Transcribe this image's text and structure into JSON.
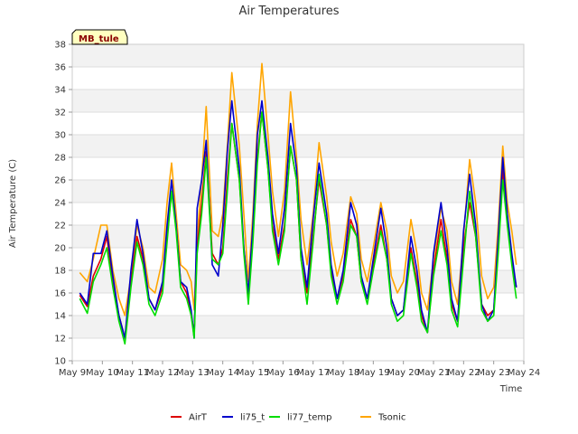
{
  "chart_data": {
    "type": "line",
    "title": "Air Temperatures",
    "xlabel": "Time",
    "ylabel": "Air Temperature (C)",
    "site_label": "MB_tule",
    "x_tick_labels": [
      "May 9",
      "May 10",
      "May 11",
      "May 12",
      "May 13",
      "May 14",
      "May 15",
      "May 16",
      "May 17",
      "May 18",
      "May 19",
      "May 20",
      "May 21",
      "May 22",
      "May 23",
      "May 24"
    ],
    "xlim": [
      0,
      15
    ],
    "ylim": [
      10,
      38
    ],
    "y_ticks": [
      10,
      12,
      14,
      16,
      18,
      20,
      22,
      24,
      26,
      28,
      30,
      32,
      34,
      36,
      38
    ],
    "grid": true,
    "legend_position": "bottom",
    "x_unit": "days since May 9",
    "series": [
      {
        "name": "AirT",
        "color": "#dd0000",
        "x": [
          0.25,
          0.5,
          0.7,
          0.95,
          1.15,
          1.35,
          1.55,
          1.75,
          1.95,
          2.15,
          2.35,
          2.55,
          2.75,
          3.0,
          3.15,
          3.3,
          3.45,
          3.6,
          3.8,
          3.95,
          4.05,
          4.15,
          4.3,
          4.45,
          4.65,
          4.85,
          5.0,
          5.15,
          5.3,
          5.55,
          5.7,
          5.85,
          6.0,
          6.15,
          6.3,
          6.5,
          6.65,
          6.85,
          7.05,
          7.25,
          7.45,
          7.6,
          7.8,
          8.0,
          8.2,
          8.45,
          8.6,
          8.8,
          9.0,
          9.25,
          9.45,
          9.6,
          9.8,
          10.0,
          10.25,
          10.45,
          10.6,
          10.8,
          11.0,
          11.25,
          11.45,
          11.6,
          11.8,
          12.0,
          12.25,
          12.45,
          12.6,
          12.8,
          13.0,
          13.2,
          13.4,
          13.6,
          13.8,
          14.0,
          14.15,
          14.3,
          14.45,
          14.6,
          14.75
        ],
        "values": [
          15.8,
          14.8,
          17.5,
          19.0,
          21.0,
          17.0,
          14.0,
          12.0,
          17.0,
          21.0,
          19.0,
          15.5,
          14.5,
          16.5,
          21.0,
          25.0,
          22.0,
          17.0,
          16.0,
          14.0,
          12.5,
          20.0,
          24.0,
          28.5,
          19.5,
          18.5,
          20.0,
          26.0,
          31.0,
          26.0,
          20.0,
          15.8,
          21.0,
          28.0,
          32.0,
          27.0,
          22.0,
          19.0,
          22.0,
          29.0,
          26.0,
          19.0,
          16.0,
          21.0,
          26.0,
          22.0,
          18.0,
          15.5,
          17.5,
          22.5,
          21.0,
          17.0,
          15.5,
          18.5,
          22.0,
          19.0,
          15.5,
          14.0,
          14.5,
          20.0,
          17.0,
          14.0,
          12.5,
          18.0,
          22.5,
          19.0,
          15.0,
          13.5,
          20.0,
          24.0,
          21.0,
          15.0,
          14.0,
          14.5,
          20.0,
          27.0,
          22.5,
          19.0,
          16.5
        ]
      },
      {
        "name": "li75_t",
        "color": "#0000cc",
        "x": [
          0.25,
          0.5,
          0.7,
          0.95,
          1.15,
          1.35,
          1.55,
          1.75,
          1.95,
          2.15,
          2.35,
          2.55,
          2.75,
          3.0,
          3.15,
          3.3,
          3.45,
          3.6,
          3.8,
          3.95,
          4.05,
          4.15,
          4.3,
          4.45,
          4.65,
          4.85,
          5.0,
          5.15,
          5.3,
          5.55,
          5.7,
          5.85,
          6.0,
          6.15,
          6.3,
          6.5,
          6.65,
          6.85,
          7.05,
          7.25,
          7.45,
          7.6,
          7.8,
          8.0,
          8.2,
          8.45,
          8.6,
          8.8,
          9.0,
          9.25,
          9.45,
          9.6,
          9.8,
          10.0,
          10.25,
          10.45,
          10.6,
          10.8,
          11.0,
          11.25,
          11.45,
          11.6,
          11.8,
          12.0,
          12.25,
          12.45,
          12.6,
          12.8,
          13.0,
          13.2,
          13.4,
          13.6,
          13.8,
          14.0,
          14.15,
          14.3,
          14.45,
          14.6,
          14.75
        ],
        "values": [
          16.0,
          15.0,
          19.5,
          19.5,
          21.5,
          17.5,
          14.0,
          12.0,
          18.0,
          22.5,
          19.5,
          15.5,
          14.5,
          17.0,
          22.0,
          26.0,
          22.0,
          17.0,
          16.5,
          14.5,
          12.0,
          23.5,
          26.0,
          29.5,
          18.5,
          17.5,
          22.0,
          28.5,
          33.0,
          27.0,
          20.0,
          16.0,
          22.0,
          30.0,
          33.0,
          28.0,
          23.0,
          19.5,
          23.5,
          31.0,
          27.0,
          20.0,
          16.5,
          22.5,
          27.5,
          23.0,
          18.5,
          15.5,
          18.0,
          24.0,
          22.0,
          17.5,
          15.5,
          19.0,
          23.5,
          20.0,
          15.5,
          14.0,
          14.5,
          21.0,
          18.0,
          14.5,
          12.5,
          19.5,
          24.0,
          20.0,
          15.5,
          13.5,
          21.5,
          26.5,
          22.0,
          15.0,
          13.5,
          14.5,
          21.0,
          28.0,
          23.0,
          19.5,
          16.5
        ]
      },
      {
        "name": "li77_temp",
        "color": "#00dd00",
        "x": [
          0.25,
          0.5,
          0.7,
          0.95,
          1.15,
          1.35,
          1.55,
          1.75,
          1.95,
          2.15,
          2.35,
          2.55,
          2.75,
          3.0,
          3.15,
          3.3,
          3.45,
          3.6,
          3.8,
          3.95,
          4.05,
          4.15,
          4.3,
          4.45,
          4.65,
          4.85,
          5.0,
          5.15,
          5.3,
          5.55,
          5.7,
          5.85,
          6.0,
          6.15,
          6.3,
          6.5,
          6.65,
          6.85,
          7.05,
          7.25,
          7.45,
          7.6,
          7.8,
          8.0,
          8.2,
          8.45,
          8.6,
          8.8,
          9.0,
          9.25,
          9.45,
          9.6,
          9.8,
          10.0,
          10.25,
          10.45,
          10.6,
          10.8,
          11.0,
          11.25,
          11.45,
          11.6,
          11.8,
          12.0,
          12.25,
          12.45,
          12.6,
          12.8,
          13.0,
          13.2,
          13.4,
          13.6,
          13.8,
          14.0,
          14.15,
          14.3,
          14.45,
          14.6,
          14.75
        ],
        "values": [
          15.5,
          14.2,
          17.0,
          18.5,
          20.0,
          16.5,
          13.5,
          11.5,
          16.5,
          20.5,
          18.5,
          15.0,
          14.0,
          16.0,
          20.5,
          25.0,
          21.5,
          16.5,
          15.5,
          14.0,
          12.0,
          19.5,
          23.0,
          28.0,
          19.0,
          18.5,
          19.5,
          25.0,
          31.0,
          26.0,
          19.5,
          15.0,
          20.5,
          27.5,
          32.0,
          27.0,
          21.5,
          18.5,
          21.5,
          29.0,
          26.0,
          19.0,
          15.0,
          20.5,
          26.5,
          22.0,
          17.5,
          15.0,
          17.0,
          22.0,
          21.0,
          17.0,
          15.0,
          18.0,
          21.5,
          19.0,
          15.0,
          13.5,
          14.0,
          19.5,
          16.5,
          13.5,
          12.5,
          17.5,
          21.5,
          18.5,
          14.5,
          13.0,
          19.0,
          25.0,
          21.0,
          14.5,
          13.5,
          14.0,
          19.5,
          26.0,
          22.0,
          18.5,
          15.5
        ]
      },
      {
        "name": "Tsonic",
        "color": "#ffa500",
        "x": [
          0.25,
          0.5,
          0.7,
          0.95,
          1.15,
          1.35,
          1.55,
          1.75,
          1.95,
          2.15,
          2.35,
          2.55,
          2.75,
          3.0,
          3.15,
          3.3,
          3.45,
          3.6,
          3.8,
          3.95,
          4.05,
          4.15,
          4.3,
          4.45,
          4.65,
          4.85,
          5.0,
          5.15,
          5.3,
          5.55,
          5.7,
          5.85,
          6.0,
          6.15,
          6.3,
          6.5,
          6.65,
          6.85,
          7.05,
          7.25,
          7.45,
          7.6,
          7.8,
          8.0,
          8.2,
          8.45,
          8.6,
          8.8,
          9.0,
          9.25,
          9.45,
          9.6,
          9.8,
          10.0,
          10.25,
          10.45,
          10.6,
          10.8,
          11.0,
          11.25,
          11.45,
          11.6,
          11.8,
          12.0,
          12.25,
          12.45,
          12.6,
          12.8,
          13.0,
          13.2,
          13.4,
          13.6,
          13.8,
          14.0,
          14.15,
          14.3,
          14.45,
          14.6,
          14.75
        ],
        "values": [
          17.8,
          17.0,
          19.0,
          22.0,
          22.0,
          18.0,
          15.5,
          14.0,
          17.5,
          22.0,
          20.0,
          16.5,
          16.0,
          19.0,
          24.0,
          27.5,
          23.0,
          18.5,
          18.0,
          17.0,
          14.5,
          21.0,
          26.0,
          32.5,
          21.5,
          21.0,
          23.0,
          29.0,
          35.5,
          29.0,
          23.0,
          17.0,
          23.0,
          31.0,
          36.3,
          30.0,
          25.0,
          21.0,
          25.0,
          33.8,
          28.0,
          22.5,
          18.5,
          23.0,
          29.3,
          24.5,
          20.5,
          17.5,
          19.5,
          24.5,
          23.0,
          19.0,
          17.0,
          20.0,
          24.0,
          21.5,
          17.5,
          16.0,
          17.0,
          22.5,
          19.5,
          16.0,
          14.5,
          19.0,
          23.5,
          21.5,
          17.0,
          15.0,
          21.0,
          27.8,
          24.0,
          17.5,
          15.5,
          16.5,
          22.0,
          29.0,
          24.0,
          21.5,
          18.5
        ]
      }
    ]
  }
}
